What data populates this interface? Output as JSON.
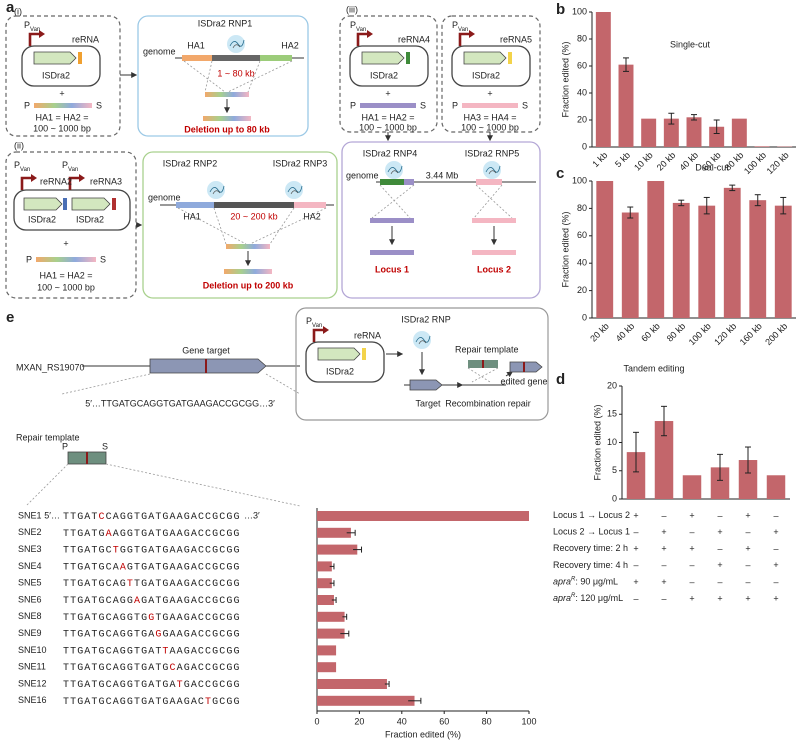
{
  "panel_labels": [
    "a",
    "b",
    "c",
    "d",
    "e"
  ],
  "panel_a": {
    "i": {
      "tag": "(i)",
      "promoter": "P",
      "promoter_sub": "Van",
      "rna": "reRNA",
      "gene": "ISDra2",
      "plus": "+",
      "p": "P",
      "s": "S",
      "ha": "HA1 = HA2 =",
      "length": "100 ~ 1000 bp",
      "rnp": "ISDra2 RNP1",
      "genome": "genome",
      "ha_left": "HA1",
      "ha_right": "HA2",
      "range": "1 ~ 80 kb",
      "result": "Deletion up to 80 kb"
    },
    "ii": {
      "tag": "(ii)",
      "promoters": [
        "P",
        "P"
      ],
      "promoter_subs": [
        "Van",
        "Van"
      ],
      "rnas": [
        "reRNA2",
        "reRNA3"
      ],
      "genes": [
        "ISDra2",
        "ISDra2"
      ],
      "plus": "+",
      "p": "P",
      "s": "S",
      "ha": "HA1 = HA2 =",
      "length": "100 ~ 1000 bp",
      "rnps": [
        "ISDra2 RNP2",
        "ISDra2 RNP3"
      ],
      "genome": "genome",
      "ha_left": "HA1",
      "ha_right": "HA2",
      "range": "20 ~ 200 kb",
      "result": "Deletion up to 200 kb"
    },
    "iii": {
      "tag": "(iii)",
      "plasmids": [
        {
          "promoter": "P",
          "promoter_sub": "Van",
          "rna": "reRNA4",
          "gene": "ISDra2",
          "plus": "+",
          "p": "P",
          "s": "S",
          "ha": "HA1 = HA2 =",
          "length": "100 ~ 1000 bp"
        },
        {
          "promoter": "P",
          "promoter_sub": "Van",
          "rna": "reRNA5",
          "gene": "ISDra2",
          "plus": "+",
          "p": "P",
          "s": "S",
          "ha": "HA3 = HA4 =",
          "length": "100 ~ 1000 bp"
        }
      ],
      "rnps": [
        "ISDra2 RNP4",
        "ISDra2 RNP5"
      ],
      "genome": "genome",
      "distance": "3.44 Mb",
      "loci": [
        "Locus 1",
        "Locus 2"
      ]
    }
  },
  "panel_e": {
    "locus": "MXAN_RS19070",
    "gene_target": "Gene target",
    "sequence": "5′…TTGATGCAGGTGATGAAGACCGCGG…3′",
    "repair_template": "Repair template",
    "p": "P",
    "s": "S",
    "scheme": {
      "promoter": "P",
      "promoter_sub": "Van",
      "rna": "reRNA",
      "gene": "ISDra2",
      "rnp": "ISDra2 RNP",
      "repair_template": "Repair template",
      "edited_gene": "edited gene",
      "target": "Target",
      "repair": "Recombination repair"
    },
    "rows": [
      {
        "prefix": "5′…",
        "pre": "TTGAT",
        "mut": "C",
        "post": "CAGGTGATGAAGACCGCGG",
        "suffix": "…3′"
      },
      {
        "pre": "TTGATG",
        "mut": "A",
        "post": "AGGTGATGAAGACCGCGG"
      },
      {
        "pre": "TTGATGC",
        "mut": "T",
        "post": "GGTGATGAAGACCGCGG"
      },
      {
        "pre": "TTGATGCA",
        "mut": "A",
        "post": "GTGATGAAGACCGCGG"
      },
      {
        "pre": "TTGATGCAG",
        "mut": "T",
        "post": "TGATGAAGACCGCGG"
      },
      {
        "pre": "TTGATGCAGG",
        "mut": "A",
        "post": "GATGAAGACCGCGG"
      },
      {
        "pre": "TTGATGCAGGTG",
        "mut": "G",
        "post": "TGAAGACCGCGG"
      },
      {
        "pre": "TTGATGCAGGTGA",
        "mut": "G",
        "post": "GAAGACCGCGG"
      },
      {
        "pre": "TTGATGCAGGTGAT",
        "mut": "T",
        "post": "AAGACCGCGG"
      },
      {
        "pre": "TTGATGCAGGTGATG",
        "mut": "C",
        "post": "AGACCGCGG"
      },
      {
        "pre": "TTGATGCAGGTGATGA",
        "mut": "T",
        "post": "GACCGCGG"
      },
      {
        "pre": "TTGATGCAGGTGATGAAGAC",
        "mut": "T",
        "post": "GCGG"
      }
    ]
  },
  "chart_data": [
    {
      "type": "bar",
      "title": "Single-cut",
      "categories": [
        "1 kb",
        "5 kb",
        "10 kb",
        "20 kb",
        "40 kb",
        "60 kb",
        "80 kb",
        "100 kb",
        "120 kb"
      ],
      "values": [
        100,
        61,
        21,
        21,
        22,
        15,
        21,
        0.5,
        0.3
      ],
      "errors": [
        0,
        5,
        0,
        4,
        2,
        5,
        0,
        0,
        0
      ],
      "color": "#c3666b",
      "ylim": [
        0,
        100
      ],
      "yticks": [
        0,
        20,
        40,
        60,
        80,
        100
      ],
      "ylabel": "Fraction edited (%)"
    },
    {
      "type": "bar",
      "title": "Dual-cut",
      "categories": [
        "20 kb",
        "40 kb",
        "60 kb",
        "80 kb",
        "100 kb",
        "120 kb",
        "160 kb",
        "200 kb"
      ],
      "values": [
        100,
        77,
        100,
        84,
        82,
        95,
        86,
        82
      ],
      "errors": [
        0,
        4,
        0,
        2,
        6,
        2,
        4,
        6
      ],
      "color": "#c3666b",
      "ylim": [
        0,
        100
      ],
      "yticks": [
        0,
        20,
        40,
        60,
        80,
        100
      ],
      "ylabel": "Fraction edited (%)"
    },
    {
      "type": "bar",
      "title": "Tandem editing",
      "values": [
        8.3,
        13.8,
        4.2,
        5.6,
        6.9,
        4.2
      ],
      "errors": [
        3.5,
        2.6,
        0,
        2.3,
        2.3,
        0
      ],
      "color": "#c3666b",
      "ylim": [
        0,
        20
      ],
      "yticks": [
        0,
        5,
        10,
        15,
        20
      ],
      "ylabel": "Fraction edited (%)",
      "conditions": [
        {
          "label": "Locus 1 → Locus 2",
          "marks": [
            "+",
            "–",
            "+",
            "–",
            "+",
            "–"
          ]
        },
        {
          "label": "Locus 2 → Locus 1",
          "marks": [
            "–",
            "+",
            "–",
            "+",
            "–",
            "+"
          ]
        },
        {
          "label": "Recovery time: 2 h",
          "marks": [
            "+",
            "+",
            "+",
            "–",
            "+",
            "–"
          ]
        },
        {
          "label": "Recovery time: 4 h",
          "marks": [
            "–",
            "–",
            "–",
            "+",
            "–",
            "+"
          ]
        },
        {
          "label": "apra",
          "label_sup": "R",
          "label_rest": ": 90 μg/mL",
          "marks": [
            "+",
            "+",
            "–",
            "–",
            "–",
            "–"
          ]
        },
        {
          "label": "apra",
          "label_sup": "R",
          "label_rest": ": 120 μg/mL",
          "marks": [
            "–",
            "–",
            "+",
            "+",
            "+",
            "+"
          ]
        }
      ]
    },
    {
      "type": "hbar",
      "categories": [
        "SNE1",
        "SNE2",
        "SNE3",
        "SNE4",
        "SNE5",
        "SNE6",
        "SNE8",
        "SNE9",
        "SNE10",
        "SNE11",
        "SNE12",
        "SNE16"
      ],
      "values": [
        100,
        16,
        19,
        7,
        7,
        8,
        13,
        13,
        9,
        9,
        33,
        46
      ],
      "errors": [
        0,
        2,
        2,
        1,
        1,
        1,
        1,
        2,
        0,
        0,
        1,
        3
      ],
      "color": "#c3666b",
      "xlim": [
        0,
        100
      ],
      "xticks": [
        0,
        20,
        40,
        60,
        80,
        100
      ],
      "xlabel": "Fraction edited (%)"
    }
  ]
}
